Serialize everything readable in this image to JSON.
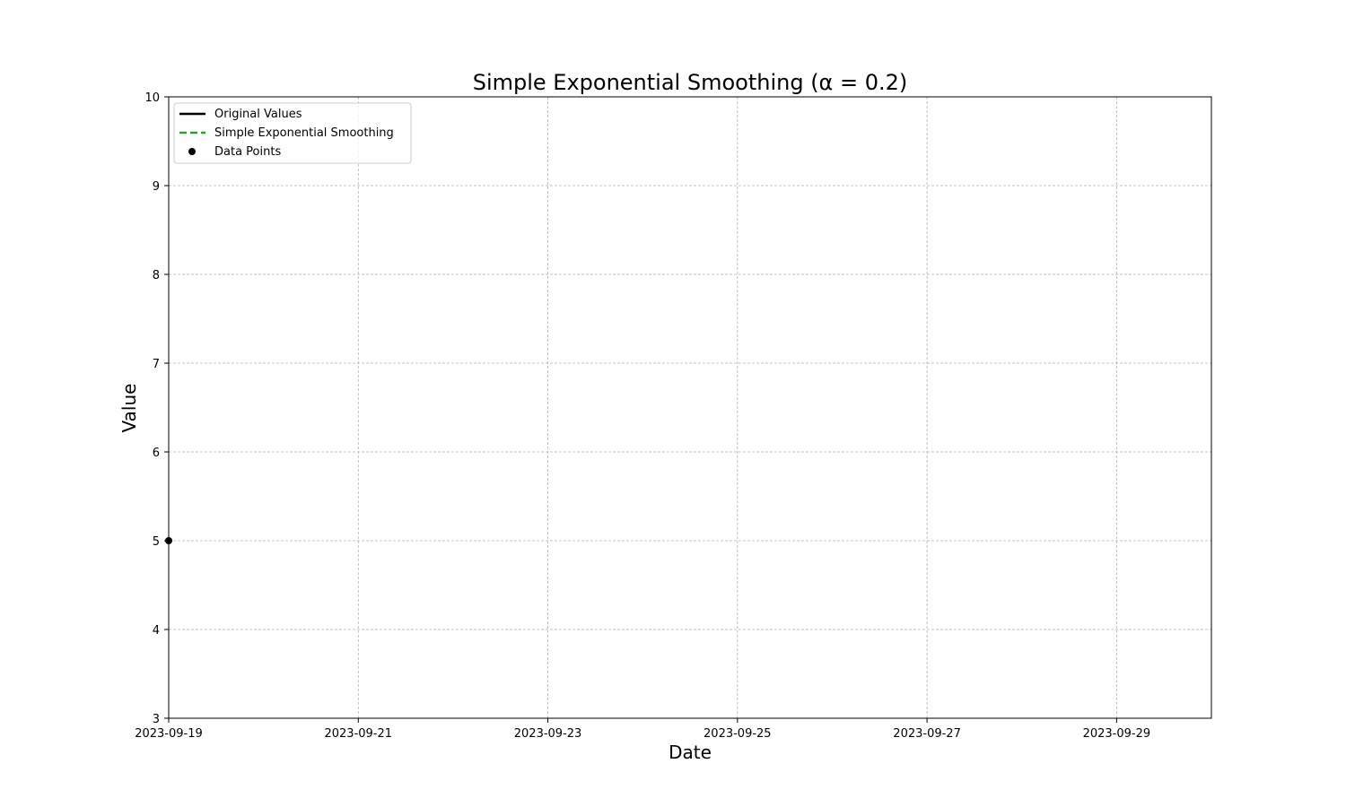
{
  "chart_data": {
    "type": "line",
    "title": "Simple Exponential Smoothing (α = 0.2)",
    "xlabel": "Date",
    "ylabel": "Value",
    "x_axis_type": "date",
    "xlim": [
      "2023-09-19",
      "2023-09-30"
    ],
    "ylim": [
      3,
      10
    ],
    "x_ticks": [
      "2023-09-19",
      "2023-09-21",
      "2023-09-23",
      "2023-09-25",
      "2023-09-27",
      "2023-09-29"
    ],
    "y_ticks": [
      3,
      4,
      5,
      6,
      7,
      8,
      9,
      10
    ],
    "grid": true,
    "legend_position": "upper left",
    "series": [
      {
        "name": "Original Values",
        "kind": "line",
        "style": "solid",
        "color": "#000000",
        "points": [
          {
            "x": "2023-09-19",
            "y": 5
          }
        ]
      },
      {
        "name": "Simple Exponential Smoothing",
        "kind": "line",
        "style": "dashed",
        "color": "#2ca02c",
        "points": [
          {
            "x": "2023-09-19",
            "y": 5
          }
        ]
      },
      {
        "name": "Data Points",
        "kind": "scatter",
        "color": "#000000",
        "points": [
          {
            "x": "2023-09-19",
            "y": 5
          }
        ]
      }
    ]
  }
}
